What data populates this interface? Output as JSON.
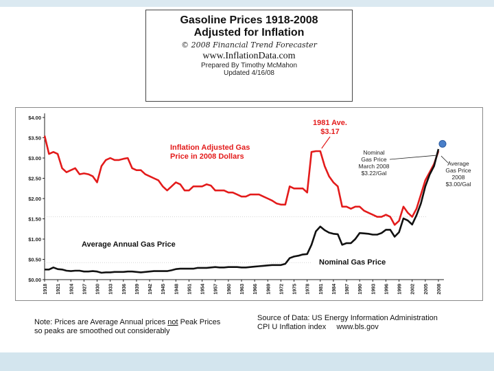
{
  "header": {
    "title_line1": "Gasoline Prices 1918-2008",
    "title_line2": "Adjusted for Inflation",
    "copyright": "© 2008 Financial Trend Forecaster",
    "website": "www.InflationData.com",
    "prepared_by": "Prepared By Timothy McMahon",
    "updated": "Updated 4/16/08"
  },
  "colors": {
    "adjusted_line": "#e31b1b",
    "nominal_line": "#111111",
    "marker": "#4a7fc9",
    "background": "#dbe9f1"
  },
  "chart_data": {
    "type": "line",
    "title": "Gasoline Prices 1918-2008 Adjusted for Inflation",
    "xlabel": "",
    "ylabel": "",
    "xlim": [
      1918,
      2008
    ],
    "ylim": [
      0,
      4
    ],
    "grid": false,
    "y_ticks": [
      {
        "value": 0,
        "label": "$0.00"
      },
      {
        "value": 0.5,
        "label": "$0.50"
      },
      {
        "value": 1,
        "label": "$1.00"
      },
      {
        "value": 1.5,
        "label": "$1.50"
      },
      {
        "value": 2,
        "label": "$2.00"
      },
      {
        "value": 2.5,
        "label": "$2.50"
      },
      {
        "value": 3,
        "label": "$3.00"
      },
      {
        "value": 3.5,
        "label": "$3.50"
      },
      {
        "value": 4,
        "label": "$4.00"
      }
    ],
    "x_ticks": [
      "1918",
      "1921",
      "1924",
      "1927",
      "1930",
      "1933",
      "1936",
      "1939",
      "1942",
      "1945",
      "1948",
      "1951",
      "1954",
      "1957",
      "1960",
      "1963",
      "1966",
      "1969",
      "1972",
      "1975",
      "1978",
      "1981",
      "1984",
      "1987",
      "1990",
      "1993",
      "1996",
      "1999",
      "2002",
      "2005",
      "2008"
    ],
    "series": [
      {
        "name": "Inflation Adjusted Gas Price in 2008 Dollars",
        "x": [
          1918,
          1919,
          1920,
          1921,
          1922,
          1923,
          1924,
          1925,
          1926,
          1927,
          1928,
          1929,
          1930,
          1931,
          1932,
          1933,
          1934,
          1935,
          1936,
          1937,
          1938,
          1939,
          1940,
          1941,
          1942,
          1943,
          1944,
          1945,
          1946,
          1947,
          1948,
          1949,
          1950,
          1951,
          1952,
          1953,
          1954,
          1955,
          1956,
          1957,
          1958,
          1959,
          1960,
          1961,
          1962,
          1963,
          1964,
          1965,
          1966,
          1967,
          1968,
          1969,
          1970,
          1971,
          1972,
          1973,
          1974,
          1975,
          1976,
          1977,
          1978,
          1979,
          1980,
          1981,
          1982,
          1983,
          1984,
          1985,
          1986,
          1987,
          1988,
          1989,
          1990,
          1991,
          1992,
          1993,
          1994,
          1995,
          1996,
          1997,
          1998,
          1999,
          2000,
          2001,
          2002,
          2003,
          2004,
          2005,
          2006,
          2007,
          2008
        ],
        "values": [
          3.55,
          3.1,
          3.15,
          3.1,
          2.75,
          2.65,
          2.7,
          2.75,
          2.6,
          2.62,
          2.6,
          2.55,
          2.4,
          2.8,
          2.95,
          3.0,
          2.95,
          2.95,
          2.98,
          3.0,
          2.75,
          2.7,
          2.7,
          2.6,
          2.55,
          2.5,
          2.45,
          2.3,
          2.2,
          2.3,
          2.4,
          2.35,
          2.2,
          2.2,
          2.3,
          2.3,
          2.3,
          2.35,
          2.32,
          2.2,
          2.2,
          2.2,
          2.15,
          2.15,
          2.1,
          2.05,
          2.05,
          2.1,
          2.1,
          2.1,
          2.05,
          2.0,
          1.95,
          1.88,
          1.85,
          1.85,
          2.3,
          2.25,
          2.25,
          2.25,
          2.15,
          3.15,
          3.17,
          3.17,
          2.8,
          2.55,
          2.4,
          2.3,
          1.8,
          1.8,
          1.75,
          1.8,
          1.8,
          1.7,
          1.65,
          1.6,
          1.55,
          1.55,
          1.6,
          1.55,
          1.35,
          1.45,
          1.8,
          1.65,
          1.55,
          1.75,
          2.1,
          2.45,
          2.65,
          2.85,
          3.17
        ]
      },
      {
        "name": "Nominal Gas Price",
        "x": [
          1918,
          1919,
          1920,
          1921,
          1922,
          1923,
          1924,
          1925,
          1926,
          1927,
          1928,
          1929,
          1930,
          1931,
          1932,
          1933,
          1934,
          1935,
          1936,
          1937,
          1938,
          1939,
          1940,
          1941,
          1942,
          1943,
          1944,
          1945,
          1946,
          1947,
          1948,
          1949,
          1950,
          1951,
          1952,
          1953,
          1954,
          1955,
          1956,
          1957,
          1958,
          1959,
          1960,
          1961,
          1962,
          1963,
          1964,
          1965,
          1966,
          1967,
          1968,
          1969,
          1970,
          1971,
          1972,
          1973,
          1974,
          1975,
          1976,
          1977,
          1978,
          1979,
          1980,
          1981,
          1982,
          1983,
          1984,
          1985,
          1986,
          1987,
          1988,
          1989,
          1990,
          1991,
          1992,
          1993,
          1994,
          1995,
          1996,
          1997,
          1998,
          1999,
          2000,
          2001,
          2002,
          2003,
          2004,
          2005,
          2006,
          2007,
          2008
        ],
        "values": [
          0.25,
          0.25,
          0.3,
          0.26,
          0.25,
          0.22,
          0.21,
          0.22,
          0.22,
          0.2,
          0.2,
          0.21,
          0.2,
          0.17,
          0.18,
          0.18,
          0.19,
          0.19,
          0.19,
          0.2,
          0.2,
          0.19,
          0.18,
          0.19,
          0.2,
          0.21,
          0.21,
          0.21,
          0.21,
          0.23,
          0.26,
          0.27,
          0.27,
          0.27,
          0.27,
          0.29,
          0.29,
          0.29,
          0.3,
          0.31,
          0.3,
          0.3,
          0.31,
          0.31,
          0.31,
          0.3,
          0.3,
          0.31,
          0.32,
          0.33,
          0.34,
          0.35,
          0.36,
          0.36,
          0.36,
          0.39,
          0.53,
          0.57,
          0.59,
          0.62,
          0.63,
          0.86,
          1.19,
          1.31,
          1.22,
          1.16,
          1.13,
          1.12,
          0.86,
          0.9,
          0.9,
          1.0,
          1.15,
          1.14,
          1.13,
          1.11,
          1.11,
          1.15,
          1.23,
          1.23,
          1.06,
          1.17,
          1.51,
          1.46,
          1.36,
          1.59,
          1.88,
          2.3,
          2.59,
          2.8,
          3.22
        ]
      }
    ],
    "annotations": {
      "adjusted_label": [
        "Inflation Adjusted Gas",
        "Price in 2008 Dollars"
      ],
      "peak_label": [
        "1981 Ave.",
        "$3.17"
      ],
      "nominal_march_label": [
        "Nominal",
        "Gas Price",
        "March 2008",
        "$3.22/Gal"
      ],
      "average_2008_label": [
        "Average",
        "Gas Price",
        "2008",
        "$3.00/Gal"
      ],
      "average_annual_label": "Average Annual Gas Price",
      "nominal_label": "Nominal Gas Price"
    }
  },
  "footer": {
    "note_prefix": "Note: Prices are Average Annual prices ",
    "note_emphasis": "not",
    "note_suffix": " Peak Prices",
    "note_line2": "so peaks are smoothed out considerably",
    "source_line1": "Source of Data: US Energy Information Administration",
    "source_line2": "CPI U Inflation index     www.bls.gov"
  }
}
